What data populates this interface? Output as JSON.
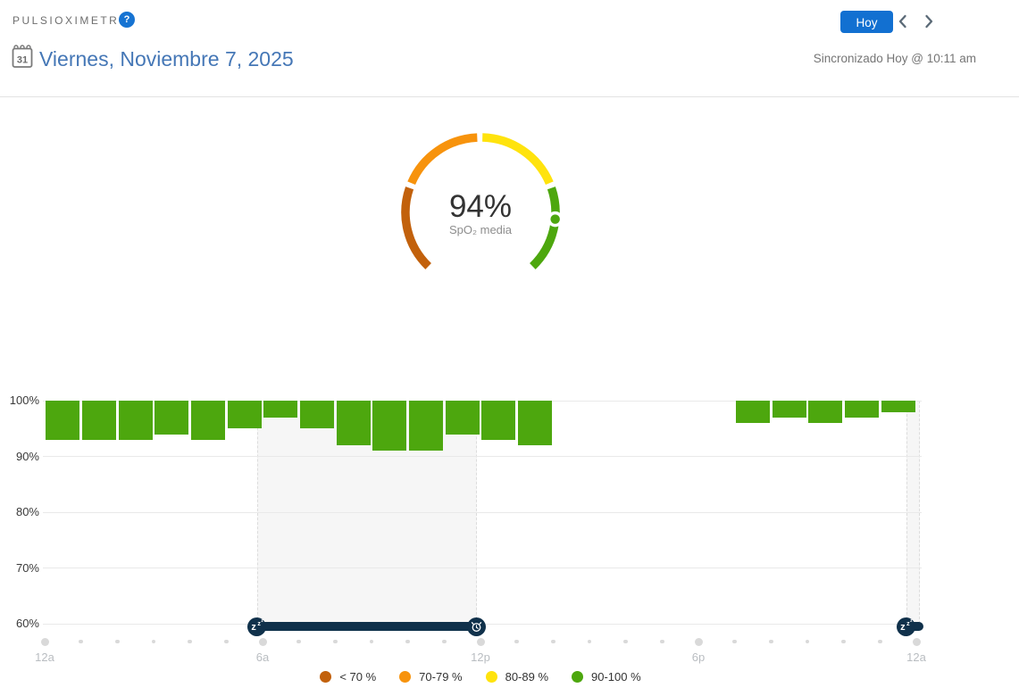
{
  "header": {
    "title": "PULSIOXIMETRÍA",
    "help_icon": "?",
    "today_button": "Hoy",
    "calendar_day": "31",
    "date": "Viernes, Noviembre 7, 2025",
    "sync_status": "Sincronizado Hoy @ 10:11 am"
  },
  "gauge": {
    "value": 94,
    "value_label": "94%",
    "caption": "SpO₂ media",
    "min": 60,
    "max": 100,
    "segments": [
      {
        "name": "lt-70",
        "color": "#c2610c",
        "start": 134,
        "end": 199
      },
      {
        "name": "70-79",
        "color": "#f7930d",
        "start": 203,
        "end": 267.5
      },
      {
        "name": "80-89",
        "color": "#ffe30d",
        "start": 271.5,
        "end": 337
      },
      {
        "name": "90-100",
        "color": "#4da70e",
        "start": 341,
        "end": 406
      }
    ],
    "dot_color": "#4da70e"
  },
  "chart_data": {
    "type": "bar",
    "title": "",
    "xlabel": "",
    "ylabel": "",
    "ylim": [
      60,
      100
    ],
    "grid": true,
    "bar_color": "#4da70e",
    "yticks": [
      {
        "label": "100%",
        "value": 100
      },
      {
        "label": "90%",
        "value": 90
      },
      {
        "label": "80%",
        "value": 80
      },
      {
        "label": "70%",
        "value": 70
      },
      {
        "label": "60%",
        "value": 60
      }
    ],
    "xticks": [
      {
        "label": "12a",
        "hour": 0
      },
      {
        "label": "6a",
        "hour": 6
      },
      {
        "label": "12p",
        "hour": 12
      },
      {
        "label": "6p",
        "hour": 18
      },
      {
        "label": "12a",
        "hour": 24
      }
    ],
    "hours": 24,
    "values": [
      93,
      93,
      93,
      94,
      93,
      95,
      97,
      95,
      92,
      91,
      91,
      94,
      93,
      92,
      null,
      null,
      null,
      null,
      null,
      96,
      97,
      96,
      97,
      98
    ],
    "bar_top_value": 100,
    "sleep_sessions": [
      {
        "start_hour": 5.85,
        "end_hour": 11.9,
        "start_icon": "zzz-icon",
        "end_icon": "alarm-clock-icon"
      },
      {
        "start_hour": 23.72,
        "end_hour": 24.1,
        "start_icon": "zzz-icon",
        "end_icon": null
      }
    ],
    "legend": [
      {
        "label": "< 70 %",
        "color": "#c2610c"
      },
      {
        "label": "70-79 %",
        "color": "#f7930d"
      },
      {
        "label": "80-89 %",
        "color": "#ffe30d"
      },
      {
        "label": "90-100 %",
        "color": "#4da70e"
      }
    ],
    "legend_position": "bottom"
  }
}
